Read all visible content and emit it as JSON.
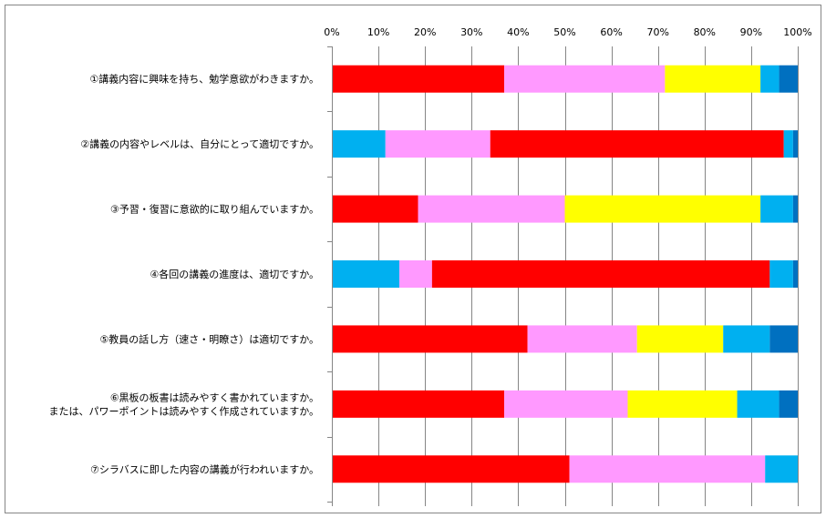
{
  "chart_data": {
    "type": "bar",
    "orientation": "horizontal",
    "stacked": true,
    "normalized_percent": true,
    "xlim": [
      0,
      100
    ],
    "x_ticks": [
      "0%",
      "10%",
      "20%",
      "30%",
      "40%",
      "50%",
      "60%",
      "70%",
      "80%",
      "90%",
      "100%"
    ],
    "categories": [
      "①講義内容に興味を持ち、勉学意欲がわきますか。",
      "②講義の内容やレベルは、自分にとって適切ですか。",
      "③予習・復習に意欲的に取り組んでいますか。",
      "④各回の講義の進度は、適切ですか。",
      "⑤教員の話し方（速さ・明瞭さ）は適切ですか。",
      "⑥黒板の板書は読みやすく書かれていますか。\nまたは、パワーポイントは読みやすく作成されていますか。",
      "⑦シラバスに即した内容の講義が行われいますか。"
    ],
    "rows": [
      [
        {
          "color": "#ff0000",
          "value": 37
        },
        {
          "color": "#ff99ff",
          "value": 34.5
        },
        {
          "color": "#ffff00",
          "value": 20.5
        },
        {
          "color": "#00b0f0",
          "value": 4
        },
        {
          "color": "#0070c0",
          "value": 4
        }
      ],
      [
        {
          "color": "#00b0f0",
          "value": 11.5
        },
        {
          "color": "#ff99ff",
          "value": 22.5
        },
        {
          "color": "#ff0000",
          "value": 63
        },
        {
          "color": "#00b0f0",
          "value": 2
        },
        {
          "color": "#0070c0",
          "value": 1
        }
      ],
      [
        {
          "color": "#ff0000",
          "value": 18.5
        },
        {
          "color": "#ff99ff",
          "value": 31.5
        },
        {
          "color": "#ffff00",
          "value": 42
        },
        {
          "color": "#00b0f0",
          "value": 7
        },
        {
          "color": "#0070c0",
          "value": 1
        }
      ],
      [
        {
          "color": "#00b0f0",
          "value": 14.5
        },
        {
          "color": "#ff99ff",
          "value": 7
        },
        {
          "color": "#ff0000",
          "value": 72.5
        },
        {
          "color": "#00b0f0",
          "value": 5
        },
        {
          "color": "#0070c0",
          "value": 1
        }
      ],
      [
        {
          "color": "#ff0000",
          "value": 42
        },
        {
          "color": "#ff99ff",
          "value": 23.5
        },
        {
          "color": "#ffff00",
          "value": 18.5
        },
        {
          "color": "#00b0f0",
          "value": 10
        },
        {
          "color": "#0070c0",
          "value": 6
        }
      ],
      [
        {
          "color": "#ff0000",
          "value": 37
        },
        {
          "color": "#ff99ff",
          "value": 26.5
        },
        {
          "color": "#ffff00",
          "value": 23.5
        },
        {
          "color": "#00b0f0",
          "value": 9
        },
        {
          "color": "#0070c0",
          "value": 4
        }
      ],
      [
        {
          "color": "#ff0000",
          "value": 51
        },
        {
          "color": "#ff99ff",
          "value": 42
        },
        {
          "color": "#00b0f0",
          "value": 7
        }
      ]
    ],
    "grid": true,
    "legend": "none"
  }
}
